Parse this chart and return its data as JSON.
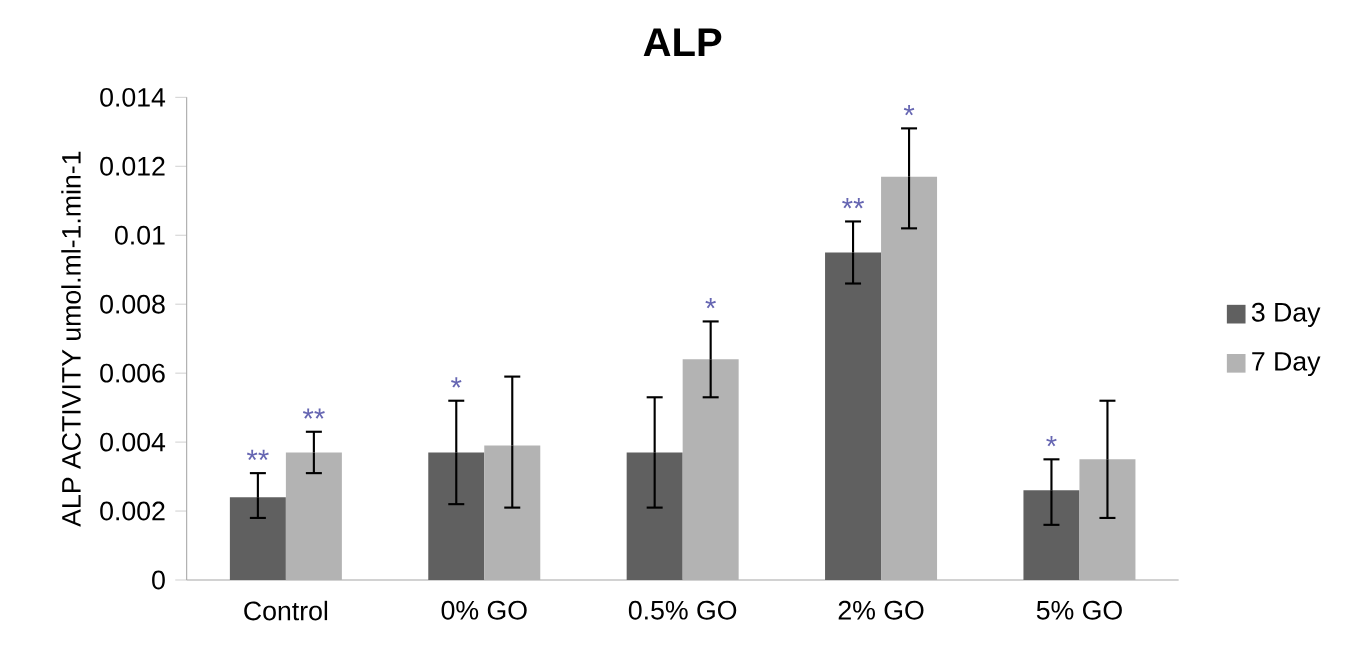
{
  "chart_data": {
    "type": "bar",
    "title": "ALP",
    "ylabel": "ALP ACTIVITY umol.ml-1.min-1",
    "categories": [
      "Control",
      "0% GO",
      "0.5% GO",
      "2% GO",
      "5% GO"
    ],
    "series": [
      {
        "name": "3 Day",
        "color": "#606060",
        "values": [
          0.0024,
          0.0037,
          0.0037,
          0.0095,
          0.0026
        ],
        "errors": [
          [
            0.0018,
            0.0031
          ],
          [
            0.0022,
            0.0052
          ],
          [
            0.0021,
            0.0053
          ],
          [
            0.0086,
            0.0104
          ],
          [
            0.0016,
            0.0035
          ]
        ]
      },
      {
        "name": "7 Day",
        "color": "#b3b3b3",
        "values": [
          0.0037,
          0.0039,
          0.0064,
          0.0117,
          0.0035
        ],
        "errors": [
          [
            0.0031,
            0.0043
          ],
          [
            0.0021,
            0.0059
          ],
          [
            0.0053,
            0.0075
          ],
          [
            0.0102,
            0.0131
          ],
          [
            0.0018,
            0.0052
          ]
        ]
      }
    ],
    "ylim": [
      0,
      0.014
    ],
    "yticks": [
      0,
      0.002,
      0.004,
      0.006,
      0.008,
      0.01,
      0.012,
      0.014
    ],
    "legend": "right",
    "grid": false,
    "annotations": [
      {
        "text": "**",
        "x": "Control",
        "y": 0.0024
      },
      {
        "text": "**",
        "x": "Control",
        "y": 0.0037
      },
      {
        "text": "*",
        "x": "0% GO",
        "y": 0.0037
      },
      {
        "text": "*",
        "x": "0.5% GO",
        "y": 0.0064
      },
      {
        "text": "**",
        "x": "2% GO",
        "y": 0.0095
      },
      {
        "text": "*",
        "x": "2% GO",
        "y": 0.0117
      },
      {
        "text": "*",
        "x": "5% GO",
        "y": 0.0026
      }
    ]
  }
}
